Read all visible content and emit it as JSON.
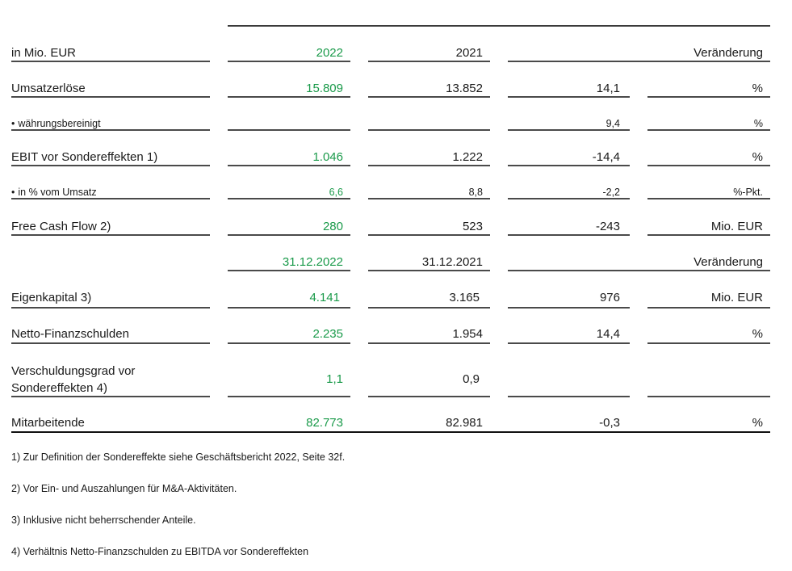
{
  "header": {
    "unit_label": "in Mio. EUR",
    "year_current": "2022",
    "year_previous": "2021",
    "change_label": "Veränderung"
  },
  "rows": [
    {
      "label": "Umsatzerlöse",
      "v2022": "15.809",
      "v2021": "13.852",
      "change": "14,1",
      "unit": "%"
    },
    {
      "label": "währungsbereinigt",
      "bullet": "•",
      "v2022": "",
      "v2021": "",
      "change": "9,4",
      "unit": "%"
    },
    {
      "label": "EBIT vor Sondereffekten 1)",
      "v2022": "1.046",
      "v2021": "1.222",
      "change": "-14,4",
      "unit": "%"
    },
    {
      "label": "in % vom Umsatz",
      "bullet": "•",
      "v2022": "6,6",
      "v2021": "8,8",
      "change": "-2,2",
      "unit": "%-Pkt."
    },
    {
      "label": "Free Cash Flow 2)",
      "v2022": "280",
      "v2021": "523",
      "change": "-243",
      "unit": "Mio. EUR"
    }
  ],
  "header2": {
    "date_current": "31.12.2022",
    "date_previous": "31.12.2021",
    "change_label": "Veränderung"
  },
  "rows2": [
    {
      "label": "Eigenkapital 3)",
      "v2022": "4.141",
      "v2021": "3.165",
      "change": "976",
      "unit": "Mio. EUR"
    },
    {
      "label": "Netto-Finanzschulden",
      "v2022": "2.235",
      "v2021": "1.954",
      "change": "14,4",
      "unit": "%"
    },
    {
      "label_line1": "Verschuldungsgrad vor",
      "label_line2": "Sondereffekten 4)",
      "v2022": "1,1",
      "v2021": "0,9",
      "change": "",
      "unit": ""
    },
    {
      "label": "Mitarbeitende",
      "v2022": "82.773",
      "v2021": "82.981",
      "change": "-0,3",
      "unit": "%"
    }
  ],
  "footnotes": [
    "1) Zur Definition der Sondereffekte siehe Geschäftsbericht 2022, Seite 32f.",
    "2) Vor Ein- und Auszahlungen für M&A-Aktivitäten.",
    "3) Inklusive nicht beherrschender Anteile.",
    "4) Verhältnis Netto-Finanzschulden zu EBITDA vor Sondereffekten"
  ],
  "colors": {
    "highlight_green": "#1a9a4a",
    "rule": "#4a4a4a"
  }
}
